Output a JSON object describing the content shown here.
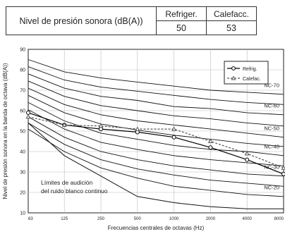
{
  "header": {
    "label": "Nivel de presión sonora (dB(A))",
    "cooling_label": "Refriger.",
    "heating_label": "Calefacc.",
    "cooling_value": "50",
    "heating_value": "53"
  },
  "chart_data": {
    "type": "line",
    "title": "",
    "xlabel": "Frecuencias centrales de octavas (Hz)",
    "ylabel": "Nivel de presión sonora en la banda de octava (dB(A))",
    "x_scale": "log",
    "categories": [
      "63",
      "125",
      "250",
      "500",
      "1000",
      "2000",
      "4000",
      "8000"
    ],
    "x": [
      63,
      125,
      250,
      500,
      1000,
      2000,
      4000,
      8000
    ],
    "yticks": [
      "10",
      "20",
      "30",
      "40",
      "50",
      "60",
      "70",
      "80",
      "90"
    ],
    "ylim": [
      10,
      90
    ],
    "grid": true,
    "legend_position": "top-right",
    "series": [
      {
        "name": "Refrig.",
        "values": [
          59,
          53,
          51,
          49.5,
          47,
          42,
          36,
          29
        ],
        "color": "#000000",
        "style": "solid"
      },
      {
        "name": "Calefac.",
        "values": [
          57,
          53,
          52.5,
          51,
          51,
          45,
          39,
          32
        ],
        "color": "#555555",
        "style": "dashed"
      }
    ],
    "nc_curves": [
      {
        "label": "NC-70",
        "values": [
          85,
          79,
          76,
          74,
          72,
          70,
          69,
          68
        ]
      },
      {
        "label": "",
        "values": [
          81.5,
          75,
          71.5,
          69.5,
          67.5,
          65.5,
          64,
          63
        ]
      },
      {
        "label": "NC-60",
        "values": [
          78,
          71,
          67,
          65,
          62,
          61,
          59,
          58
        ]
      },
      {
        "label": "",
        "values": [
          74.5,
          67,
          62.5,
          60,
          57.5,
          56,
          54,
          52.5
        ]
      },
      {
        "label": "NC-50",
        "values": [
          71,
          63,
          58,
          55,
          53,
          51,
          49,
          47
        ]
      },
      {
        "label": "",
        "values": [
          67.5,
          59,
          53.5,
          50.5,
          48,
          46,
          44,
          42.5
        ]
      },
      {
        "label": "NC-40",
        "values": [
          64,
          55,
          49,
          46,
          43,
          41,
          40,
          38
        ]
      },
      {
        "label": "",
        "values": [
          60.5,
          51,
          44.5,
          41,
          38,
          36,
          34.5,
          33
        ]
      },
      {
        "label": "NC-30",
        "values": [
          57,
          47,
          40,
          36,
          33,
          31,
          29,
          28
        ]
      },
      {
        "label": "",
        "values": [
          54,
          43.5,
          36,
          31.5,
          28.5,
          26,
          24.5,
          23
        ]
      },
      {
        "label": "NC-20",
        "values": [
          51,
          40,
          32,
          27,
          23,
          21,
          19,
          18
        ]
      }
    ],
    "threshold_curve": {
      "values": [
        54,
        38,
        28,
        18,
        15,
        13,
        12,
        12
      ]
    },
    "annotation": [
      "Límites de audición",
      "del ruido blanco continuo"
    ]
  }
}
